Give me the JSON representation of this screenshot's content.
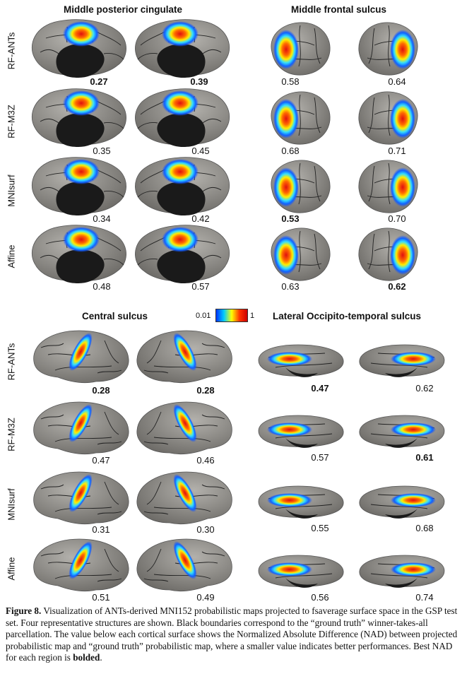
{
  "panels": {
    "mpc": {
      "title": "Middle posterior cingulate",
      "rows": [
        {
          "label": "RF-ANTs",
          "values": [
            {
              "v": "0.27",
              "bold": true
            },
            {
              "v": "0.39",
              "bold": true
            }
          ]
        },
        {
          "label": "RF-M3Z",
          "values": [
            {
              "v": "0.35",
              "bold": false
            },
            {
              "v": "0.45",
              "bold": false
            }
          ]
        },
        {
          "label": "MNIsurf",
          "values": [
            {
              "v": "0.34",
              "bold": false
            },
            {
              "v": "0.42",
              "bold": false
            }
          ]
        },
        {
          "label": "Affine",
          "values": [
            {
              "v": "0.48",
              "bold": false
            },
            {
              "v": "0.57",
              "bold": false
            }
          ]
        }
      ]
    },
    "mfs": {
      "title": "Middle frontal sulcus",
      "rows": [
        {
          "values": [
            {
              "v": "0.58",
              "bold": false
            },
            {
              "v": "0.64",
              "bold": false
            }
          ]
        },
        {
          "values": [
            {
              "v": "0.68",
              "bold": false
            },
            {
              "v": "0.71",
              "bold": false
            }
          ]
        },
        {
          "values": [
            {
              "v": "0.53",
              "bold": true
            },
            {
              "v": "0.70",
              "bold": false
            }
          ]
        },
        {
          "values": [
            {
              "v": "0.63",
              "bold": false
            },
            {
              "v": "0.62",
              "bold": true
            }
          ]
        }
      ]
    },
    "cs": {
      "title": "Central sulcus",
      "rows": [
        {
          "label": "RF-ANTs",
          "values": [
            {
              "v": "0.28",
              "bold": true
            },
            {
              "v": "0.28",
              "bold": true
            }
          ]
        },
        {
          "label": "RF-M3Z",
          "values": [
            {
              "v": "0.47",
              "bold": false
            },
            {
              "v": "0.46",
              "bold": false
            }
          ]
        },
        {
          "label": "MNIsurf",
          "values": [
            {
              "v": "0.31",
              "bold": false
            },
            {
              "v": "0.30",
              "bold": false
            }
          ]
        },
        {
          "label": "Affine",
          "values": [
            {
              "v": "0.51",
              "bold": false
            },
            {
              "v": "0.49",
              "bold": false
            }
          ]
        }
      ]
    },
    "lots": {
      "title": "Lateral Occipito-temporal sulcus",
      "rows": [
        {
          "values": [
            {
              "v": "0.47",
              "bold": true
            },
            {
              "v": "0.62",
              "bold": false
            }
          ]
        },
        {
          "values": [
            {
              "v": "0.57",
              "bold": false
            },
            {
              "v": "0.61",
              "bold": true
            }
          ]
        },
        {
          "values": [
            {
              "v": "0.55",
              "bold": false
            },
            {
              "v": "0.68",
              "bold": false
            }
          ]
        },
        {
          "values": [
            {
              "v": "0.56",
              "bold": false
            },
            {
              "v": "0.74",
              "bold": false
            }
          ]
        }
      ]
    }
  },
  "colorbar": {
    "min_label": "0.01",
    "max_label": "1",
    "colors": [
      "#0033ff",
      "#00ccff",
      "#ffff00",
      "#ff3300",
      "#cc0000"
    ]
  },
  "caption": {
    "figure_label": "Figure 8.",
    "text": "Visualization of ANTs-derived MNI152 probabilistic maps projected to fsaverage surface space in the GSP test set. Four representative structures are shown. Black boundaries correspond to the “ground truth” winner-takes-all parcellation. The value below each cortical surface shows the Normalized Absolute Difference (NAD) between projected probabilistic map and “ground truth” probabilistic map, where a smaller value indicates better performances. Best NAD for each region is",
    "bolded_word": "bolded",
    "end": "."
  },
  "colors": {
    "cortex": "#8c8a86",
    "sulcal_lines": "#222222",
    "medial_wall": "#1a1a1a"
  }
}
